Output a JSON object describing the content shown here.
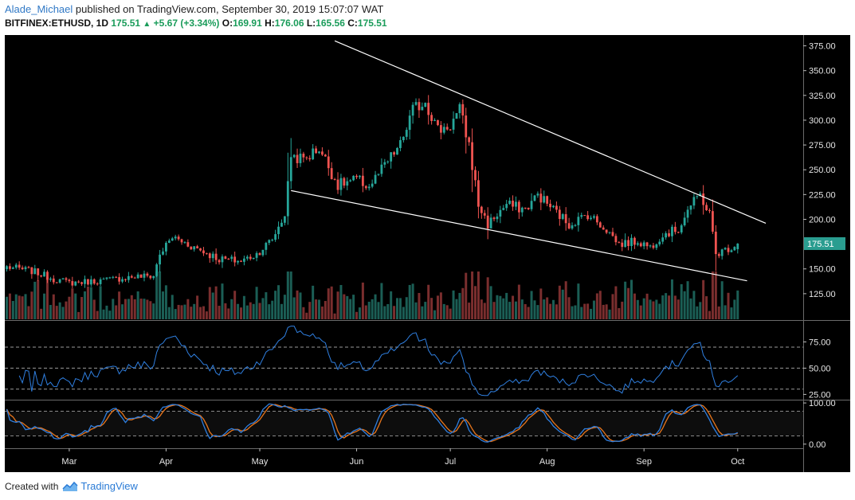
{
  "header": {
    "author": "Alade_Michael",
    "published": "published on TradingView.com, September 30, 2019 15:07:07 WAT",
    "symbol": "BITFINEX:ETHUSD, 1D",
    "last": "175.51",
    "change": "+5.67 (+3.34%)",
    "o_label": "O:",
    "o": "169.91",
    "h_label": "H:",
    "h": "176.06",
    "l_label": "L:",
    "l": "165.56",
    "c_label": "C:",
    "c": "175.51"
  },
  "footer": {
    "created_with": "Created with",
    "brand": "TradingView"
  },
  "colors": {
    "background": "#000000",
    "up": "#26a69a",
    "down": "#ef5350",
    "vol_up": "#1b5e55",
    "vol_down": "#7a2e2e",
    "rsi": "#2f7fe0",
    "stoch_k": "#2f7fe0",
    "stoch_d": "#e8761c",
    "trendline": "#ffffff",
    "last_price_tag": "#2a9d90"
  },
  "chart_data": {
    "type": "candlestick",
    "x_ticks": [
      "Mar",
      "Apr",
      "May",
      "Jun",
      "Jul",
      "Aug",
      "Sep",
      "Oct"
    ],
    "x_tick_index": [
      20,
      51,
      81,
      112,
      142,
      173,
      204,
      234
    ],
    "price_axis": {
      "range": [
        100,
        387.5
      ],
      "ticks": [
        "375.00",
        "350.00",
        "325.00",
        "300.00",
        "275.00",
        "250.00",
        "225.00",
        "200.00",
        "175.51",
        "150.00",
        "125.00"
      ],
      "last_price": 175.51
    },
    "rsi_axis": {
      "range": [
        20,
        95
      ],
      "ticks": [
        "75.00",
        "50.00",
        "25.00"
      ],
      "levels": [
        70,
        50,
        30
      ]
    },
    "stoch_axis": {
      "range": [
        -10,
        106
      ],
      "ticks": [
        "100.00",
        "0.00"
      ],
      "levels": [
        80,
        20
      ]
    },
    "trendlines": [
      {
        "from": [
          105,
          380
        ],
        "to": [
          243,
          196
        ]
      },
      {
        "from": [
          91,
          229
        ],
        "to": [
          237,
          138
        ]
      }
    ],
    "ohlc_anchors": [
      [
        0,
        152
      ],
      [
        8,
        148
      ],
      [
        15,
        140
      ],
      [
        20,
        136
      ],
      [
        30,
        138
      ],
      [
        40,
        142
      ],
      [
        47,
        143
      ],
      [
        49,
        165
      ],
      [
        53,
        182
      ],
      [
        60,
        172
      ],
      [
        68,
        160
      ],
      [
        75,
        158
      ],
      [
        80,
        165
      ],
      [
        85,
        180
      ],
      [
        89,
        205
      ],
      [
        91,
        265
      ],
      [
        95,
        260
      ],
      [
        100,
        272
      ],
      [
        106,
        235
      ],
      [
        112,
        240
      ],
      [
        116,
        233
      ],
      [
        120,
        250
      ],
      [
        126,
        275
      ],
      [
        130,
        310
      ],
      [
        134,
        320
      ],
      [
        138,
        290
      ],
      [
        142,
        295
      ],
      [
        145,
        310
      ],
      [
        148,
        275
      ],
      [
        151,
        215
      ],
      [
        154,
        195
      ],
      [
        160,
        215
      ],
      [
        166,
        210
      ],
      [
        170,
        225
      ],
      [
        175,
        210
      ],
      [
        180,
        195
      ],
      [
        186,
        205
      ],
      [
        192,
        190
      ],
      [
        196,
        175
      ],
      [
        202,
        178
      ],
      [
        206,
        172
      ],
      [
        210,
        185
      ],
      [
        215,
        190
      ],
      [
        218,
        210
      ],
      [
        222,
        225
      ],
      [
        225,
        205
      ],
      [
        227,
        165
      ],
      [
        232,
        172
      ],
      [
        234,
        175.51
      ]
    ],
    "ohlc_last": {
      "open": 169.91,
      "high": 176.06,
      "low": 165.56,
      "close": 175.51
    }
  }
}
